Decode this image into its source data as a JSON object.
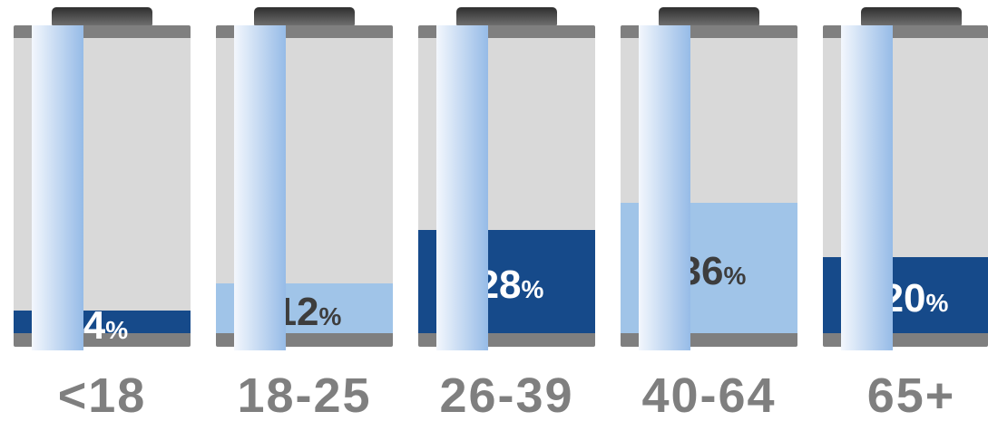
{
  "chart_data": {
    "type": "bar",
    "categories": [
      "<18",
      "18-25",
      "26-39",
      "40-64",
      "65+"
    ],
    "values": [
      4,
      12,
      28,
      36,
      20
    ],
    "unit": "%",
    "bar_colors": [
      "#164a8a",
      "#a0c4e8",
      "#164a8a",
      "#a0c4e8",
      "#164a8a"
    ],
    "value_label_colors": [
      "#ffffff",
      "#3d3d3d",
      "#ffffff",
      "#3d3d3d",
      "#ffffff"
    ],
    "legend": "none",
    "grid": false
  },
  "colors": {
    "background": "#ffffff",
    "battery_body": "#d9d9d9",
    "battery_band": "#7f7f7f",
    "battery_cap": "#2e2e2e",
    "battery_cap_light": "#6e6e6e",
    "tube_light": "#f3f7fd",
    "tube_mid": "#c9dcf3",
    "tube_dark": "#96bbe7",
    "category_label": "#7f7f7f"
  }
}
